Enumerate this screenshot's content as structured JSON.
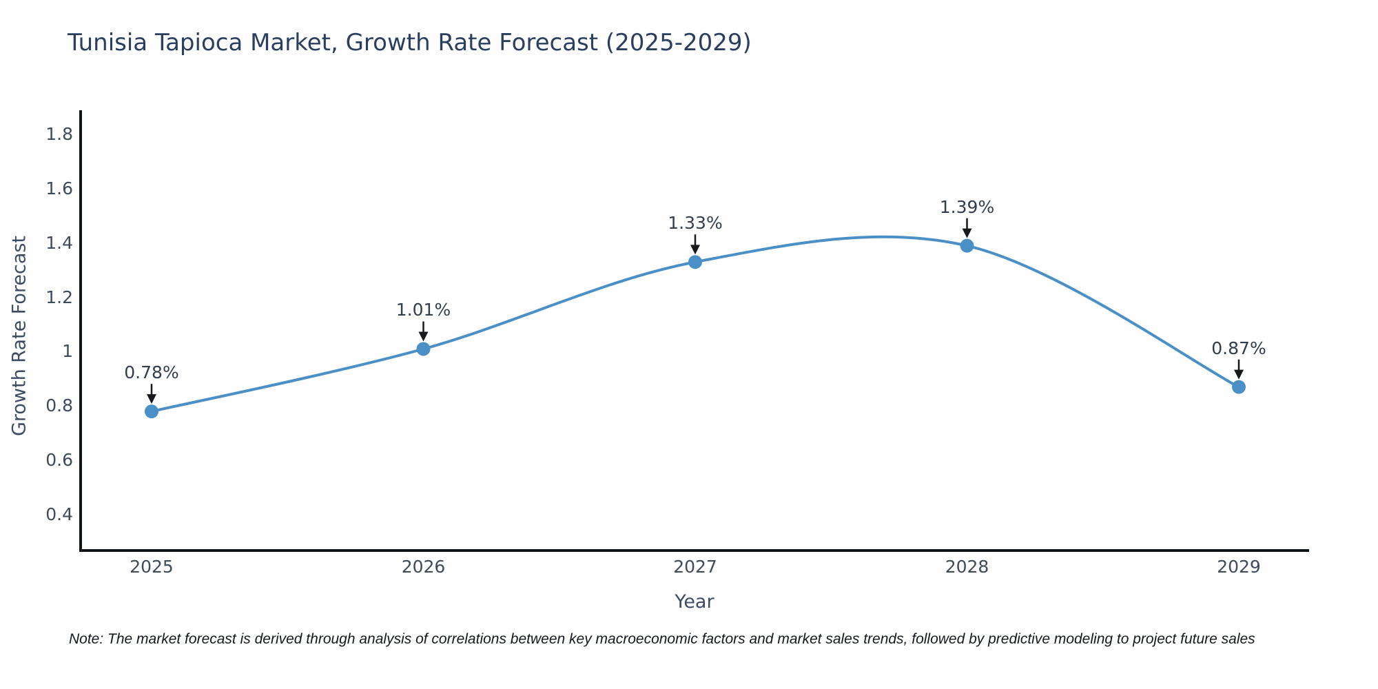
{
  "chart_data": {
    "type": "line",
    "title": "Tunisia Tapioca Market, Growth Rate Forecast (2025-2029)",
    "xlabel": "Year",
    "ylabel": "Growth Rate Forecast",
    "x": [
      2025,
      2026,
      2027,
      2028,
      2029
    ],
    "values": [
      0.78,
      1.01,
      1.33,
      1.39,
      0.87
    ],
    "point_labels": [
      "0.78%",
      "1.01%",
      "1.33%",
      "1.39%",
      "0.87%"
    ],
    "x_tick_labels": [
      "2025",
      "2026",
      "2027",
      "2028",
      "2029"
    ],
    "y_ticks": [
      1.8,
      1.6,
      1.4,
      1.2,
      1,
      0.8,
      0.6,
      0.4
    ],
    "y_tick_labels": [
      "1.8",
      "1.6",
      "1.4",
      "1.2",
      "1",
      "0.8",
      "0.6",
      "0.4"
    ],
    "ylim": [
      0.27,
      1.89
    ],
    "grid": false,
    "legend": "none",
    "line_smoothing": "spline",
    "annotations_have_arrows": true,
    "colors": {
      "line": "#4a90c7",
      "marker": "#4a90c7",
      "axis_spine": "#111418",
      "arrow": "#16181c",
      "title": "#2a3f5f",
      "tick_text": "#404b5a",
      "axis_title_text": "#3d4c63"
    }
  },
  "note": {
    "text": "Note: The market forecast is derived through analysis of correlations between key macroeconomic factors and market sales trends, followed by predictive modeling to project future sales"
  }
}
